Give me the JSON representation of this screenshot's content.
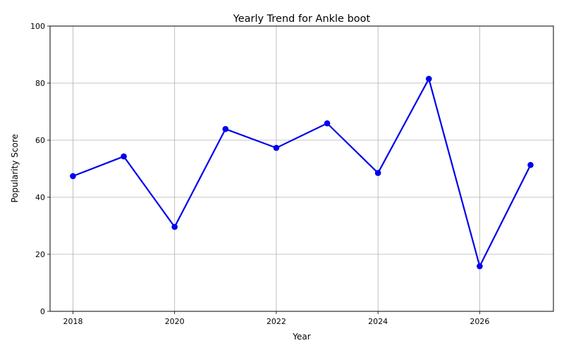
{
  "chart_data": {
    "type": "line",
    "title": "Yearly Trend for Ankle boot",
    "xlabel": "Year",
    "ylabel": "Popularity Score",
    "xlim": [
      2017.55,
      2027.45
    ],
    "ylim": [
      0,
      100
    ],
    "x_ticks": [
      2018,
      2020,
      2022,
      2024,
      2026
    ],
    "y_ticks": [
      0,
      20,
      40,
      60,
      80,
      100
    ],
    "grid": true,
    "series": [
      {
        "color": "#0000ee",
        "marker": "circle",
        "x": [
          2018,
          2019,
          2020,
          2021,
          2022,
          2023,
          2024,
          2025,
          2026,
          2027
        ],
        "y": [
          47.4,
          54.3,
          29.6,
          63.9,
          57.3,
          65.9,
          48.5,
          81.5,
          15.8,
          51.3
        ]
      }
    ]
  }
}
